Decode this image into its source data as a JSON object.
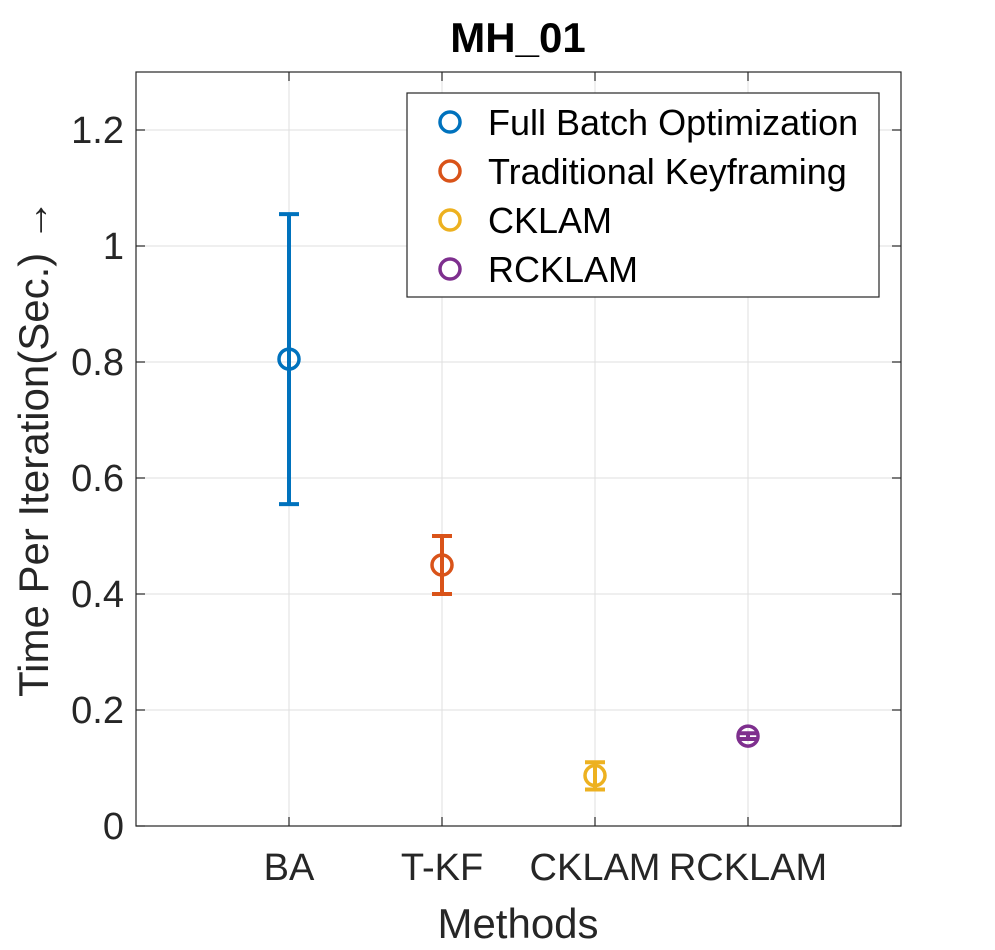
{
  "chart_data": {
    "type": "scatter",
    "title": "MH_01",
    "xlabel": "Methods",
    "ylabel": "Time Per Iteration(Sec.) →",
    "categories": [
      "BA",
      "T-KF",
      "CKLAM",
      "RCKLAM"
    ],
    "ylim": [
      0,
      1.3
    ],
    "yticks": [
      0,
      0.2,
      0.4,
      0.6,
      0.8,
      1.0,
      1.2
    ],
    "ytick_labels": [
      "0",
      "0.2",
      "0.4",
      "0.6",
      "0.8",
      "1",
      "1.2"
    ],
    "grid": true,
    "legend_position": "top-right",
    "series": [
      {
        "name": "Full Batch Optimization",
        "category": "BA",
        "value": 0.805,
        "lower": 0.555,
        "upper": 1.055,
        "color": "#0072BD"
      },
      {
        "name": "Traditional Keyframing",
        "category": "T-KF",
        "value": 0.45,
        "lower": 0.4,
        "upper": 0.5,
        "color": "#D95319"
      },
      {
        "name": "CKLAM",
        "category": "CKLAM",
        "value": 0.087,
        "lower": 0.063,
        "upper": 0.11,
        "color": "#EDB120"
      },
      {
        "name": "RCKLAM",
        "category": "RCKLAM",
        "value": 0.155,
        "lower": 0.15,
        "upper": 0.16,
        "color": "#7E2F8E"
      }
    ]
  }
}
